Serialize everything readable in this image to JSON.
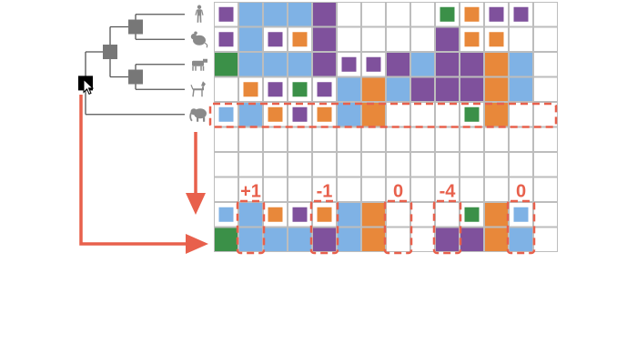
{
  "colors": {
    "blue": "#7fb2e5",
    "purple": "#7f519c",
    "orange": "#e8883a",
    "green": "#3b9048",
    "red": "#e8604c",
    "grid": "#bdbdbd",
    "tree": "#555555",
    "node": "#777777",
    "selected_node": "#000000",
    "species_icon": "#8a8a8a"
  },
  "species": [
    {
      "icon": "human-icon"
    },
    {
      "icon": "rodent-icon"
    },
    {
      "icon": "cow-icon"
    },
    {
      "icon": "dog-icon"
    },
    {
      "icon": "elephant-icon"
    }
  ],
  "grid_columns": 14,
  "matrix_rows": [
    [
      "purple-s",
      "blue",
      "blue",
      "blue",
      "purple",
      "",
      "",
      "",
      "",
      "green-s",
      "orange-s",
      "purple-s",
      "purple-s",
      ""
    ],
    [
      "purple-s",
      "blue",
      "purple-s",
      "orange-s",
      "purple",
      "",
      "",
      "",
      "",
      "purple",
      "orange-s",
      "orange-s",
      "",
      ""
    ],
    [
      "green",
      "blue",
      "blue",
      "blue",
      "purple",
      "purple-s",
      "purple-s",
      "purple",
      "blue",
      "purple",
      "purple",
      "orange",
      "blue",
      ""
    ],
    [
      "",
      "orange-s",
      "purple-s",
      "green-s",
      "purple-s",
      "blue",
      "orange",
      "blue",
      "purple",
      "purple",
      "purple",
      "orange",
      "blue",
      ""
    ],
    [
      "blue-s",
      "blue",
      "orange-s",
      "purple-s",
      "orange-s",
      "blue",
      "orange",
      "",
      "",
      "",
      "green-s",
      "orange",
      "",
      ""
    ],
    [
      "",
      "",
      "",
      "",
      "",
      "",
      "",
      "",
      "",
      "",
      "",
      "",
      "",
      ""
    ],
    [
      "",
      "",
      "",
      "",
      "",
      "",
      "",
      "",
      "",
      "",
      "",
      "",
      "",
      ""
    ],
    [
      "",
      "",
      "",
      "",
      "",
      "",
      "",
      "",
      "",
      "",
      "",
      "",
      "",
      ""
    ],
    [
      "blue-s",
      "blue",
      "orange-s",
      "purple-s",
      "orange-s",
      "blue",
      "orange",
      "",
      "",
      "",
      "green-s",
      "orange",
      "blue-s",
      ""
    ],
    [
      "green",
      "blue",
      "blue",
      "blue",
      "purple",
      "blue",
      "orange",
      "",
      "",
      "purple",
      "purple",
      "orange",
      "blue",
      ""
    ]
  ],
  "delta_labels": [
    {
      "text": "+1",
      "column": 1
    },
    {
      "text": "-1",
      "column": 4
    },
    {
      "text": "0",
      "column": 7
    },
    {
      "text": "-4",
      "column": 9
    },
    {
      "text": "0",
      "column": 12
    }
  ],
  "cursor_icon": "pointer-cursor-icon"
}
